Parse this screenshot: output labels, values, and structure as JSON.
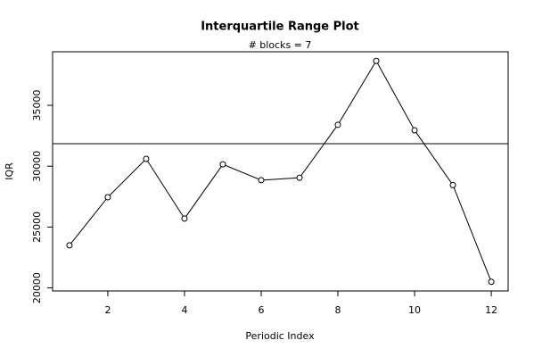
{
  "chart_data": {
    "type": "line",
    "title": "Interquartile Range Plot",
    "subtitle": "# blocks =  7",
    "x_label": "Periodic Index",
    "y_label": "IQR",
    "x": [
      1,
      2,
      3,
      4,
      5,
      6,
      7,
      8,
      9,
      10,
      11,
      12
    ],
    "series": [
      {
        "color": "#000000",
        "values": [
          23500,
          27450,
          30600,
          25700,
          30150,
          28850,
          29050,
          33400,
          38650,
          32950,
          28450,
          20500
        ]
      }
    ],
    "reference_line": 31850,
    "xlim": [
      0.56,
      12.44
    ],
    "xticks": [
      2,
      4,
      6,
      8,
      10,
      12
    ],
    "ylim": [
      19750,
      39400
    ],
    "yticks": [
      20000,
      25000,
      30000,
      35000
    ]
  }
}
